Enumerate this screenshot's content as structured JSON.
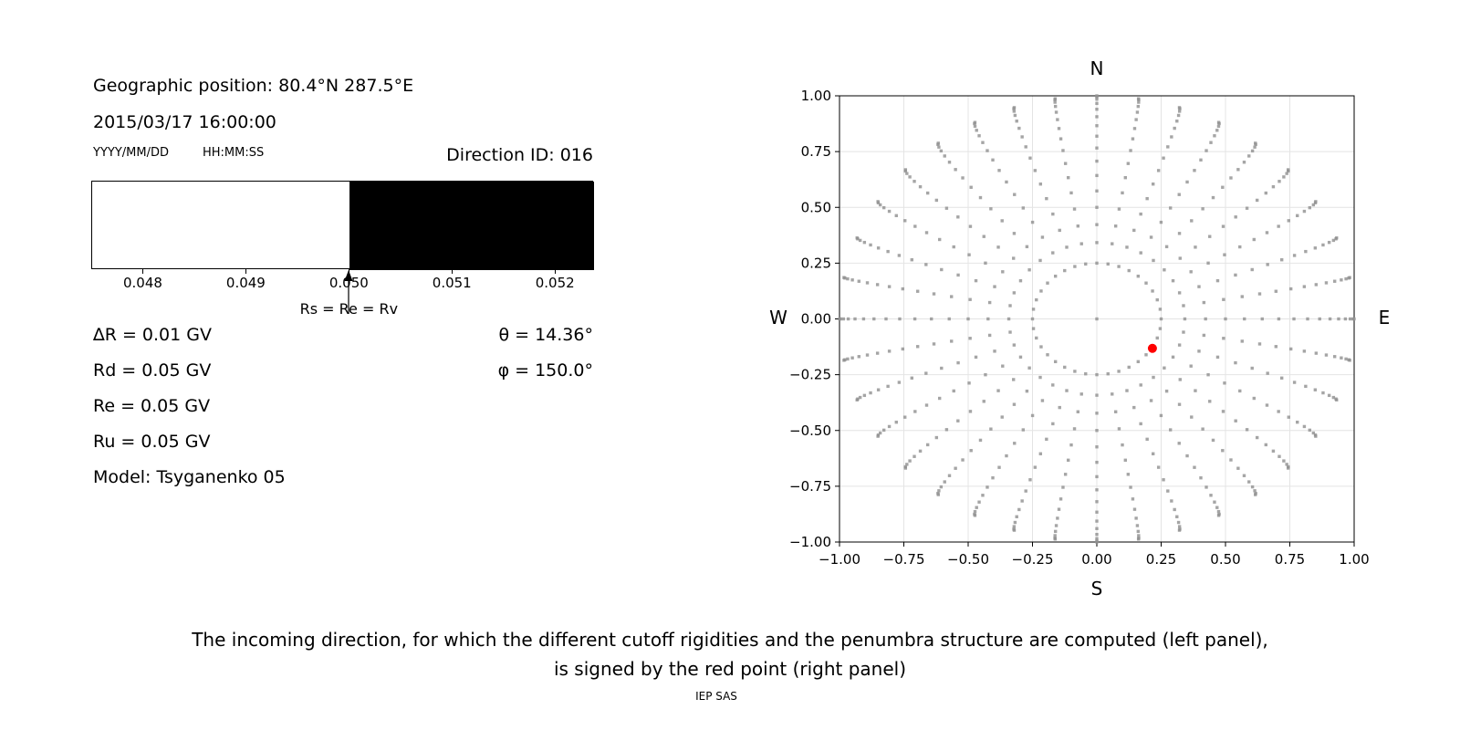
{
  "header": {
    "geo_position": "Geographic position: 80.4°N 287.5°E",
    "datetime": "2015/03/17 16:00:00",
    "date_format": "YYYY/MM/DD",
    "time_format": "HH:MM:SS",
    "direction_id": "Direction ID: 016"
  },
  "parameters": {
    "delta_r": "∆R = 0.01 GV",
    "rd": "Rd = 0.05 GV",
    "re": "Re = 0.05 GV",
    "ru": "Ru = 0.05 GV",
    "model": "Model: Tsyganenko 05",
    "theta": "θ = 14.36°",
    "phi": "φ = 150.0°"
  },
  "caption": {
    "line1": "The incoming direction, for which the different cutoff rigidities and the penumbra structure are computed (left panel),",
    "line2": "is signed by the red point (right panel)",
    "credit": "IEP SAS"
  },
  "chart_data": [
    {
      "type": "bar",
      "name": "penumbra-structure",
      "xlabel_units": "GV",
      "xlim": [
        0.0475,
        0.05237
      ],
      "x_ticks": {
        "values": [
          0.048,
          0.049,
          0.05,
          0.051,
          0.052
        ],
        "labels": [
          "0.048",
          "0.049",
          "0.050",
          "0.051",
          "0.052"
        ]
      },
      "regions": [
        {
          "from": 0.0475,
          "to": 0.05,
          "color": "#ffffff",
          "meaning": "allowed rigidities"
        },
        {
          "from": 0.05,
          "to": 0.05237,
          "color": "#000000",
          "meaning": "forbidden rigidities"
        }
      ],
      "annotation": {
        "x": 0.05,
        "label": "Rs = Re = Rv"
      }
    },
    {
      "type": "scatter",
      "name": "incoming-directions",
      "xlim": [
        -1,
        1
      ],
      "ylim": [
        -1,
        1
      ],
      "grid": true,
      "grid_color": "#e4e4e4",
      "x_ticks": {
        "values": [
          -1.0,
          -0.75,
          -0.5,
          -0.25,
          0.0,
          0.25,
          0.5,
          0.75,
          1.0
        ],
        "labels": [
          "−1.00",
          "−0.75",
          "−0.50",
          "−0.25",
          "0.00",
          "0.25",
          "0.50",
          "0.75",
          "1.00"
        ]
      },
      "y_ticks": {
        "values": [
          1.0,
          0.75,
          0.5,
          0.25,
          0.0,
          -0.25,
          -0.5,
          -0.75,
          -1.0
        ],
        "labels": [
          "1.00",
          "0.75",
          "0.50",
          "0.25",
          "0.00",
          "−0.25",
          "−0.50",
          "−0.75",
          "−1.00"
        ]
      },
      "compass_labels": {
        "north": "N",
        "east": "E",
        "south": "S",
        "west": "W"
      },
      "dot_color": "#8e8e8e",
      "red_point": {
        "x": 0.216,
        "y": -0.132,
        "color": "#ff0000"
      },
      "pattern": {
        "center_dot": true,
        "ring_radius": 0.25,
        "azimuth_step_deg": 10,
        "zenith_start_deg": 20,
        "zenith_end_deg": 90,
        "zenith_step_deg": 5,
        "radial_mapping": "sin(zenith)",
        "bend_max_deg": 2.0
      }
    }
  ]
}
